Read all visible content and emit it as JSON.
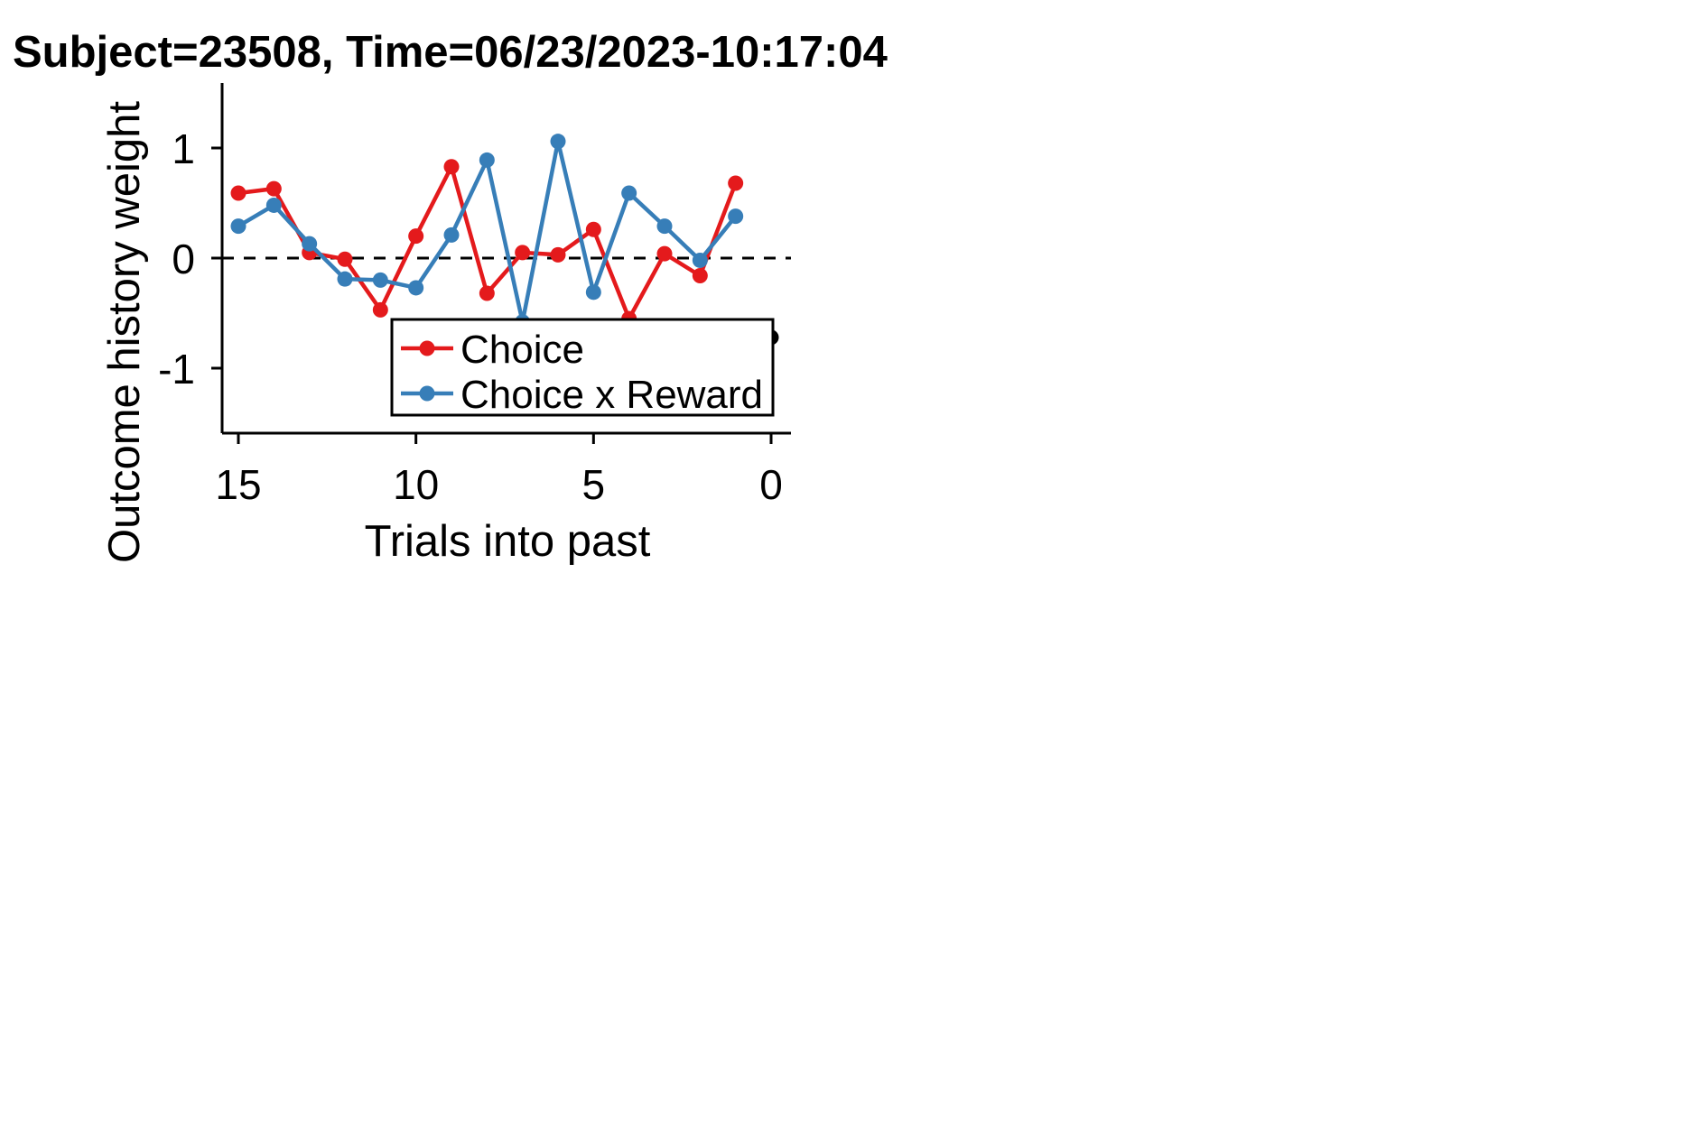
{
  "chart_data": {
    "type": "line",
    "title": "Subject=23508, Time=06/23/2023-10:17:04",
    "xlabel": "Trials into past",
    "ylabel": "Outcome history weight",
    "xlim": [
      15.5,
      -0.5
    ],
    "ylim": [
      -1.6,
      1.6
    ],
    "x_ticks": [
      15,
      10,
      5,
      0
    ],
    "x_tick_labels": [
      "15",
      "10",
      "5",
      "0"
    ],
    "y_ticks": [
      1,
      0,
      -1
    ],
    "y_tick_labels": [
      "1",
      "0",
      "-1"
    ],
    "reference_line": {
      "y": 0,
      "style": "dashed",
      "color": "#000000"
    },
    "x": [
      15,
      14,
      13,
      12,
      11,
      10,
      9,
      8,
      7,
      6,
      5,
      4,
      3,
      2,
      1
    ],
    "series": [
      {
        "name": "Choice",
        "color": "#e41a1c",
        "values": [
          0.59,
          0.63,
          0.05,
          -0.01,
          -0.47,
          0.2,
          0.83,
          -0.32,
          0.05,
          0.03,
          0.26,
          -0.55,
          0.04,
          -0.16,
          0.68
        ]
      },
      {
        "name": "Choice x Reward",
        "color": "#377eb8",
        "values": [
          0.29,
          0.48,
          0.13,
          -0.19,
          -0.2,
          -0.27,
          0.21,
          0.89,
          -0.58,
          1.06,
          -0.31,
          0.59,
          0.29,
          -0.02,
          0.38
        ]
      }
    ],
    "extra_point": {
      "x": 0,
      "y": -0.72,
      "color": "#000000"
    },
    "legend_position": "lower-right",
    "grid": false
  }
}
